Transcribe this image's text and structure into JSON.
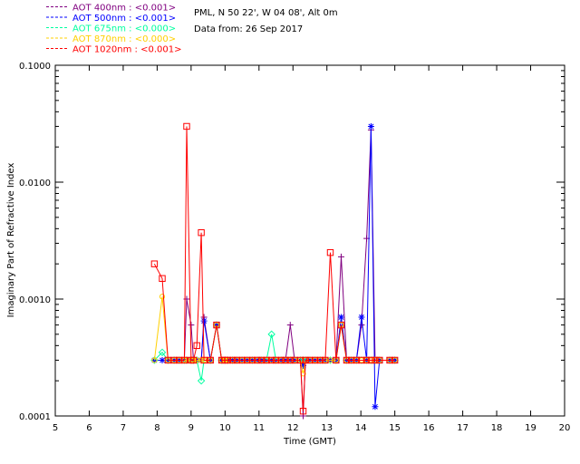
{
  "header": {
    "site": "PML, N 50 22', W 04 08', Alt 0m",
    "date": "Data from: 26 Sep 2017"
  },
  "chart_data": {
    "type": "line",
    "title": "",
    "xlabel": "Time (GMT)",
    "ylabel": "Imaginary Part of Refractive Index",
    "xlim": [
      5,
      20
    ],
    "ylim": [
      0.0001,
      0.1
    ],
    "yscale": "log",
    "x_ticks": [
      "5",
      "6",
      "7",
      "8",
      "9",
      "10",
      "11",
      "12",
      "13",
      "14",
      "15",
      "16",
      "17",
      "18",
      "19",
      "20"
    ],
    "y_ticks": [
      "0.0001",
      "0.0010",
      "0.0100",
      "0.1000"
    ],
    "legend_position": "above-left, outside plot",
    "series": [
      {
        "name": "AOT  400nm : <0.001>",
        "color": "#800080",
        "marker": "plus",
        "x": [
          7.92,
          8.15,
          8.32,
          8.5,
          8.65,
          8.8,
          8.87,
          9.0,
          9.07,
          9.17,
          9.3,
          9.38,
          9.57,
          9.75,
          9.9,
          10.0,
          10.08,
          10.22,
          10.35,
          10.5,
          10.65,
          10.8,
          10.95,
          11.08,
          11.22,
          11.37,
          11.5,
          11.65,
          11.78,
          11.92,
          12.05,
          12.22,
          12.3,
          12.37,
          12.5,
          12.65,
          12.8,
          12.95,
          13.1,
          13.27,
          13.42,
          13.58,
          13.72,
          13.87,
          14.02,
          14.17,
          14.3,
          14.42,
          14.55,
          14.85,
          15.0
        ],
        "y": [
          0.0003,
          0.0003,
          0.0003,
          0.0003,
          0.0003,
          0.0003,
          0.001,
          0.0006,
          0.0003,
          0.0003,
          0.0003,
          0.0007,
          0.0003,
          0.0006,
          0.0003,
          0.0003,
          0.0003,
          0.0003,
          0.0003,
          0.0003,
          0.0003,
          0.0003,
          0.0003,
          0.0003,
          0.0003,
          0.0003,
          0.0003,
          0.0003,
          0.0003,
          0.0006,
          0.0003,
          0.0003,
          0.0001,
          0.0003,
          0.0003,
          0.0003,
          0.0003,
          0.0003,
          0.0003,
          0.0003,
          0.0023,
          0.0003,
          0.0003,
          0.0003,
          0.0006,
          0.0033,
          0.028,
          0.0003,
          0.0003,
          0.0003,
          0.0003
        ]
      },
      {
        "name": "AOT  500nm : <0.001>",
        "color": "#0000ff",
        "marker": "star",
        "x": [
          7.92,
          8.15,
          8.32,
          8.5,
          8.65,
          8.8,
          8.87,
          9.0,
          9.07,
          9.17,
          9.3,
          9.38,
          9.57,
          9.75,
          9.9,
          10.0,
          10.08,
          10.22,
          10.35,
          10.5,
          10.65,
          10.8,
          10.95,
          11.08,
          11.22,
          11.37,
          11.5,
          11.65,
          11.78,
          11.92,
          12.05,
          12.22,
          12.3,
          12.37,
          12.5,
          12.65,
          12.8,
          12.95,
          13.1,
          13.27,
          13.42,
          13.58,
          13.72,
          13.87,
          14.02,
          14.17,
          14.3,
          14.42,
          14.55,
          14.85,
          15.0
        ],
        "y": [
          0.0003,
          0.0003,
          0.0003,
          0.0003,
          0.0003,
          0.0003,
          0.0003,
          0.0003,
          0.0003,
          0.0003,
          0.0003,
          0.00065,
          0.0003,
          0.0006,
          0.0003,
          0.0003,
          0.0003,
          0.0003,
          0.0003,
          0.0003,
          0.0003,
          0.0003,
          0.0003,
          0.0003,
          0.0003,
          0.0003,
          0.0003,
          0.0003,
          0.0003,
          0.0003,
          0.0003,
          0.0003,
          0.00027,
          0.0003,
          0.0003,
          0.0003,
          0.0003,
          0.0003,
          0.0003,
          0.0003,
          0.0007,
          0.0003,
          0.0003,
          0.0003,
          0.0007,
          0.0003,
          0.03,
          0.00012,
          0.0003,
          0.0003,
          0.0003
        ]
      },
      {
        "name": "AOT  675nm : <0.000>",
        "color": "#00ffa0",
        "marker": "diamond",
        "x": [
          7.92,
          8.15,
          8.32,
          8.5,
          8.65,
          8.8,
          8.87,
          9.0,
          9.07,
          9.17,
          9.3,
          9.38,
          9.57,
          9.75,
          9.9,
          10.0,
          10.08,
          10.22,
          10.35,
          10.5,
          10.65,
          10.8,
          10.95,
          11.08,
          11.22,
          11.37,
          11.5,
          11.65,
          11.78,
          11.92,
          12.05,
          12.22,
          12.3,
          12.37,
          12.5,
          12.65,
          12.8,
          12.95,
          13.1,
          13.27,
          13.42,
          13.58,
          13.72,
          13.87,
          14.02,
          14.17,
          14.3,
          14.42,
          14.55,
          14.85,
          15.0
        ],
        "y": [
          0.0003,
          0.00035,
          0.0003,
          0.0003,
          0.0003,
          0.0003,
          0.0003,
          0.0003,
          0.0003,
          0.0003,
          0.0002,
          0.0003,
          0.0003,
          0.0006,
          0.0003,
          0.0003,
          0.0003,
          0.0003,
          0.0003,
          0.0003,
          0.0003,
          0.0003,
          0.0003,
          0.0003,
          0.0003,
          0.0005,
          0.0003,
          0.0003,
          0.0003,
          0.0003,
          0.0003,
          0.0003,
          0.0003,
          0.0003,
          0.0003,
          0.0003,
          0.0003,
          0.0003,
          0.0003,
          0.0003,
          0.0006,
          0.0003,
          0.0003,
          0.0003,
          0.0003,
          0.0003,
          0.0003,
          0.0003,
          0.0003,
          0.0003,
          0.0003
        ]
      },
      {
        "name": "AOT  870nm : <0.000>",
        "color": "#ffd000",
        "marker": "circle",
        "x": [
          7.92,
          8.15,
          8.32,
          8.5,
          8.65,
          8.8,
          8.87,
          9.0,
          9.07,
          9.17,
          9.3,
          9.38,
          9.57,
          9.75,
          9.9,
          10.0,
          10.08,
          10.22,
          10.35,
          10.5,
          10.65,
          10.8,
          10.95,
          11.08,
          11.22,
          11.37,
          11.5,
          11.65,
          11.78,
          11.92,
          12.05,
          12.22,
          12.3,
          12.37,
          12.5,
          12.65,
          12.8,
          12.95,
          13.1,
          13.27,
          13.42,
          13.58,
          13.72,
          13.87,
          14.02,
          14.17,
          14.3,
          14.42,
          14.55,
          14.85,
          15.0
        ],
        "y": [
          0.0003,
          0.00105,
          0.0003,
          0.0003,
          0.0003,
          0.0003,
          0.0003,
          0.0003,
          0.0003,
          0.0003,
          0.0003,
          0.0003,
          0.0003,
          0.0006,
          0.0003,
          0.0003,
          0.0003,
          0.0003,
          0.0003,
          0.0003,
          0.0003,
          0.0003,
          0.0003,
          0.0003,
          0.0003,
          0.0003,
          0.0003,
          0.0003,
          0.0003,
          0.0003,
          0.0003,
          0.0003,
          0.00023,
          0.0003,
          0.0003,
          0.0003,
          0.0003,
          0.0003,
          0.0003,
          0.0003,
          0.0006,
          0.0003,
          0.0003,
          0.0003,
          0.0003,
          0.0003,
          0.0003,
          0.0003,
          0.0003,
          0.0003,
          0.0003
        ]
      },
      {
        "name": "AOT 1020nm : <0.001>",
        "color": "#ff0000",
        "marker": "square",
        "x": [
          7.92,
          8.15,
          8.32,
          8.5,
          8.65,
          8.8,
          8.87,
          9.0,
          9.07,
          9.17,
          9.3,
          9.38,
          9.57,
          9.75,
          9.9,
          10.0,
          10.08,
          10.22,
          10.35,
          10.5,
          10.65,
          10.8,
          10.95,
          11.08,
          11.22,
          11.37,
          11.5,
          11.65,
          11.78,
          11.92,
          12.05,
          12.22,
          12.3,
          12.37,
          12.5,
          12.65,
          12.8,
          12.95,
          13.1,
          13.27,
          13.42,
          13.58,
          13.72,
          13.87,
          14.02,
          14.17,
          14.3,
          14.42,
          14.55,
          14.85,
          15.0
        ],
        "y": [
          0.002,
          0.0015,
          0.0003,
          0.0003,
          0.0003,
          0.0003,
          0.03,
          0.0003,
          0.0003,
          0.0004,
          0.0037,
          0.0003,
          0.0003,
          0.0006,
          0.0003,
          0.0003,
          0.0003,
          0.0003,
          0.0003,
          0.0003,
          0.0003,
          0.0003,
          0.0003,
          0.0003,
          0.0003,
          0.0003,
          0.0003,
          0.0003,
          0.0003,
          0.0003,
          0.0003,
          0.0003,
          0.00011,
          0.0003,
          0.0003,
          0.0003,
          0.0003,
          0.0003,
          0.0025,
          0.0003,
          0.0006,
          0.0003,
          0.0003,
          0.0003,
          0.0003,
          0.0003,
          0.0003,
          0.0003,
          0.0003,
          0.0003,
          0.0003
        ]
      }
    ]
  }
}
